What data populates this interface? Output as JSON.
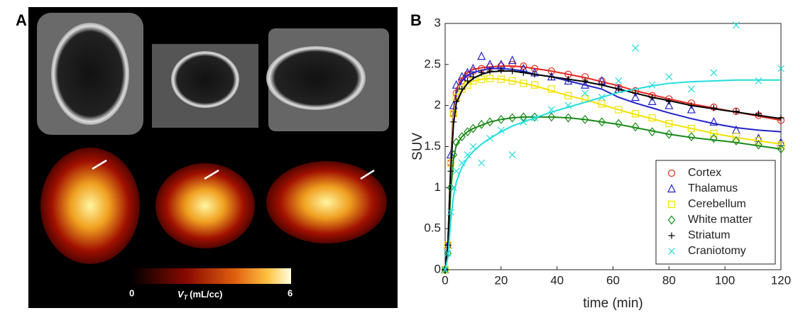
{
  "panels": {
    "a": "A",
    "b": "B"
  },
  "colorbar": {
    "min_label": "0",
    "max_label": "6",
    "symbol": "V",
    "subscript": "T",
    "unit": "(mL/cc)"
  },
  "chart_data": {
    "type": "line",
    "x_label": "time (min)",
    "y_label": "SUV",
    "x": [
      0,
      1,
      2,
      3,
      4,
      6,
      8,
      10,
      13,
      16,
      20,
      24,
      28,
      32,
      38,
      44,
      50,
      56,
      62,
      68,
      74,
      80,
      88,
      96,
      104,
      112,
      120
    ],
    "xlim": [
      0,
      120
    ],
    "xticks": [
      0,
      20,
      40,
      60,
      80,
      100,
      120
    ],
    "ylim": [
      0,
      3
    ],
    "yticks": [
      0,
      0.5,
      1,
      1.5,
      2,
      2.5,
      3
    ],
    "legend": "lower right",
    "series": [
      {
        "name": "Cortex",
        "color": "#e8261f",
        "marker": "circle",
        "values": [
          0,
          0.3,
          1.3,
          1.9,
          2.15,
          2.3,
          2.38,
          2.42,
          2.45,
          2.47,
          2.48,
          2.5,
          2.48,
          2.45,
          2.42,
          2.38,
          2.35,
          2.3,
          2.22,
          2.18,
          2.12,
          2.08,
          2.03,
          1.98,
          1.93,
          1.88,
          1.82
        ],
        "fit": [
          0,
          0.35,
          1.35,
          1.95,
          2.2,
          2.33,
          2.4,
          2.44,
          2.46,
          2.47,
          2.48,
          2.48,
          2.47,
          2.45,
          2.42,
          2.38,
          2.34,
          2.29,
          2.24,
          2.18,
          2.13,
          2.08,
          2.02,
          1.97,
          1.92,
          1.87,
          1.82
        ]
      },
      {
        "name": "Thalamus",
        "color": "#2323c8",
        "marker": "triangle",
        "values": [
          0,
          0.3,
          1.4,
          2.0,
          2.25,
          2.35,
          2.4,
          2.45,
          2.6,
          2.5,
          2.5,
          2.55,
          2.45,
          2.4,
          2.35,
          2.3,
          2.25,
          2.3,
          2.2,
          2.1,
          2.05,
          2.0,
          1.95,
          1.8,
          1.7,
          1.6,
          1.55
        ],
        "fit": [
          0,
          0.35,
          1.3,
          1.9,
          2.15,
          2.3,
          2.37,
          2.4,
          2.43,
          2.45,
          2.45,
          2.44,
          2.42,
          2.38,
          2.35,
          2.3,
          2.25,
          2.2,
          2.1,
          2.03,
          1.97,
          1.91,
          1.84,
          1.78,
          1.73,
          1.7,
          1.68
        ]
      },
      {
        "name": "Cerebellum",
        "color": "#f2e300",
        "marker": "square",
        "values": [
          0,
          0.3,
          1.3,
          1.9,
          2.1,
          2.2,
          2.25,
          2.3,
          2.32,
          2.33,
          2.32,
          2.3,
          2.27,
          2.25,
          2.2,
          2.12,
          2.08,
          2.02,
          1.95,
          1.9,
          1.85,
          1.78,
          1.72,
          1.66,
          1.62,
          1.57,
          1.52
        ],
        "fit": [
          0,
          0.3,
          1.25,
          1.85,
          2.08,
          2.2,
          2.26,
          2.3,
          2.32,
          2.33,
          2.32,
          2.3,
          2.27,
          2.24,
          2.18,
          2.12,
          2.07,
          2.01,
          1.95,
          1.89,
          1.84,
          1.78,
          1.72,
          1.66,
          1.61,
          1.57,
          1.53
        ]
      },
      {
        "name": "White matter",
        "color": "#1a8a1a",
        "marker": "diamond",
        "values": [
          0,
          0.2,
          1.0,
          1.4,
          1.55,
          1.62,
          1.68,
          1.72,
          1.77,
          1.8,
          1.83,
          1.85,
          1.86,
          1.86,
          1.86,
          1.85,
          1.83,
          1.8,
          1.78,
          1.74,
          1.68,
          1.65,
          1.62,
          1.6,
          1.57,
          1.52,
          1.47
        ],
        "fit": [
          0,
          0.2,
          0.95,
          1.35,
          1.52,
          1.62,
          1.68,
          1.72,
          1.76,
          1.8,
          1.83,
          1.85,
          1.86,
          1.86,
          1.86,
          1.85,
          1.83,
          1.8,
          1.77,
          1.73,
          1.69,
          1.65,
          1.61,
          1.58,
          1.55,
          1.51,
          1.47
        ]
      },
      {
        "name": "Striatum",
        "color": "#000000",
        "marker": "plus",
        "values": [
          0,
          0.3,
          1.2,
          1.8,
          2.05,
          2.2,
          2.3,
          2.35,
          2.4,
          2.42,
          2.43,
          2.42,
          2.4,
          2.38,
          2.35,
          2.32,
          2.3,
          2.25,
          2.2,
          2.15,
          2.1,
          2.05,
          2.0,
          1.97,
          1.93,
          1.9,
          1.85
        ],
        "fit": [
          0,
          0.3,
          1.2,
          1.78,
          2.03,
          2.18,
          2.27,
          2.33,
          2.38,
          2.41,
          2.42,
          2.42,
          2.4,
          2.38,
          2.35,
          2.32,
          2.29,
          2.25,
          2.2,
          2.15,
          2.1,
          2.06,
          2.0,
          1.96,
          1.92,
          1.88,
          1.84
        ]
      },
      {
        "name": "Craniotomy",
        "color": "#22dddd",
        "marker": "x",
        "values": [
          0,
          0.2,
          0.7,
          1.0,
          1.2,
          1.3,
          1.4,
          1.5,
          1.3,
          1.6,
          1.7,
          1.4,
          1.8,
          1.85,
          1.95,
          2.0,
          2.15,
          2.1,
          2.3,
          2.7,
          2.25,
          2.35,
          2.2,
          2.4,
          2.98,
          2.3,
          2.45
        ],
        "fit": [
          0,
          0.15,
          0.6,
          0.9,
          1.07,
          1.25,
          1.36,
          1.44,
          1.53,
          1.6,
          1.68,
          1.75,
          1.8,
          1.85,
          1.92,
          1.98,
          2.04,
          2.1,
          2.16,
          2.2,
          2.24,
          2.27,
          2.29,
          2.3,
          2.31,
          2.31,
          2.31
        ]
      }
    ]
  }
}
